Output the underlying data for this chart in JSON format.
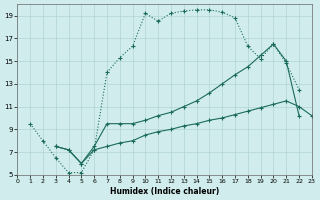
{
  "xlabel": "Humidex (Indice chaleur)",
  "bg_color": "#d0ecec",
  "grid_color": "#b0d4d4",
  "line_color": "#1a6b5a",
  "xlim": [
    0,
    23
  ],
  "ylim": [
    5,
    20
  ],
  "xticks": [
    0,
    1,
    2,
    3,
    4,
    5,
    6,
    7,
    8,
    9,
    10,
    11,
    12,
    13,
    14,
    15,
    16,
    17,
    18,
    19,
    20,
    21,
    22,
    23
  ],
  "yticks": [
    5,
    7,
    9,
    11,
    13,
    15,
    17,
    19
  ],
  "line1_x": [
    1,
    2,
    3,
    4,
    5,
    6,
    7,
    8,
    9,
    10,
    11,
    12,
    13,
    14,
    15,
    16,
    17,
    18,
    19,
    20,
    21,
    22
  ],
  "line1_y": [
    9.5,
    8.0,
    6.5,
    5.2,
    5.2,
    7.2,
    14.0,
    15.3,
    16.3,
    19.2,
    18.5,
    19.2,
    19.4,
    19.5,
    19.5,
    19.3,
    18.8,
    16.3,
    15.2,
    16.5,
    14.8,
    12.5
  ],
  "line1_dot": true,
  "line2_x": [
    3,
    4,
    5,
    6,
    7,
    8,
    9,
    10,
    11,
    12,
    13,
    14,
    15,
    16,
    17,
    18,
    19,
    20,
    21,
    22
  ],
  "line2_y": [
    7.5,
    7.2,
    6.0,
    7.5,
    9.5,
    9.5,
    9.5,
    9.8,
    10.2,
    10.5,
    11.0,
    11.5,
    12.2,
    13.0,
    13.8,
    14.5,
    15.5,
    16.5,
    15.0,
    10.2
  ],
  "line3_x": [
    3,
    4,
    5,
    6,
    7,
    8,
    9,
    10,
    11,
    12,
    13,
    14,
    15,
    16,
    17,
    18,
    19,
    20,
    21,
    22,
    23
  ],
  "line3_y": [
    7.5,
    7.2,
    6.0,
    7.2,
    7.5,
    7.8,
    8.0,
    8.5,
    8.8,
    9.0,
    9.3,
    9.5,
    9.8,
    10.0,
    10.3,
    10.6,
    10.9,
    11.2,
    11.5,
    11.0,
    10.2
  ]
}
